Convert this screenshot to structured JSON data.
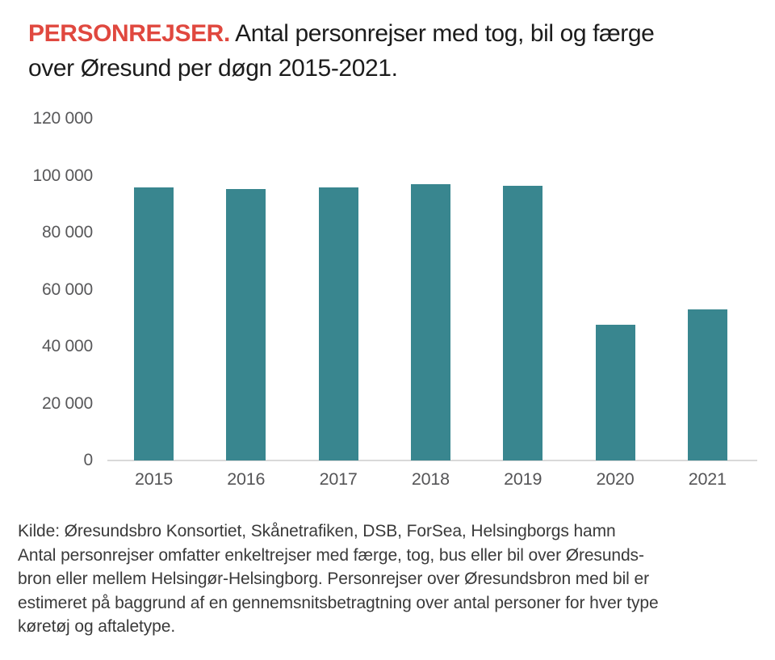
{
  "title": {
    "highlight": "PERSONREJSER.",
    "rest": " Antal personrejser med tog, bil og færge",
    "line2": "over Øresund per døgn 2015-2021."
  },
  "chart_data": {
    "type": "bar",
    "title": "PERSONREJSER. Antal personrejser med tog, bil og færge over Øresund per døgn 2015-2021.",
    "categories": [
      "2015",
      "2016",
      "2017",
      "2018",
      "2019",
      "2020",
      "2021"
    ],
    "values": [
      95800,
      95400,
      95800,
      96900,
      96400,
      47800,
      53000
    ],
    "xlabel": "",
    "ylabel": "",
    "ylim": [
      0,
      120000
    ],
    "y_ticks": [
      {
        "value": 120000,
        "label": "120 000"
      },
      {
        "value": 100000,
        "label": "100 000"
      },
      {
        "value": 80000,
        "label": "80 000"
      },
      {
        "value": 60000,
        "label": "60 000"
      },
      {
        "value": 40000,
        "label": "40 000"
      },
      {
        "value": 20000,
        "label": "20 000"
      },
      {
        "value": 0,
        "label": "0"
      }
    ],
    "grid": false,
    "legend": false,
    "bar_color": "#39868f"
  },
  "colors": {
    "accent_red": "#e0483f",
    "bar_teal": "#39868f",
    "tick_gray": "#58585a",
    "axis_line": "#d9d9d9",
    "title_text": "#1c1c1c",
    "footer_text": "#3a3a3a"
  },
  "footer": {
    "lines": [
      "Kilde: Øresundsbro Konsortiet, Skånetrafiken, DSB, ForSea, Helsingborgs hamn",
      "Antal personrejser omfatter enkeltrejser med færge, tog, bus eller bil over Øresunds-",
      "bron eller mellem Helsingør-Helsingborg. Personrejser over Øresundsbron med bil er",
      "estimeret på baggrund af en gennemsnitsbetragtning over antal personer for hver type",
      "køretøj og aftaletype."
    ]
  }
}
